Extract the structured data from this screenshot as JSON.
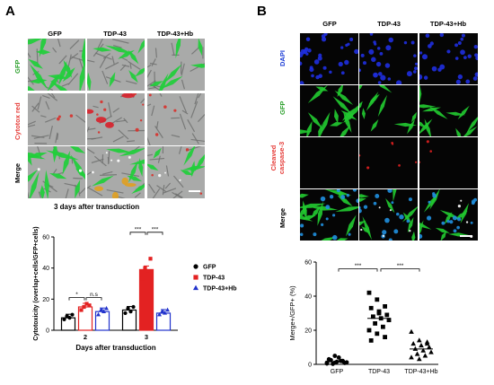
{
  "panel_a": {
    "letter": "A",
    "columns": [
      "GFP",
      "TDP-43",
      "TDP-43+Hb"
    ],
    "rows": [
      {
        "label": "GFP",
        "color": "#2ca02c"
      },
      {
        "label": "Cytotox red",
        "color": "#e53935"
      },
      {
        "label": "Merge",
        "color": "#000000"
      }
    ],
    "caption": "3 days after transduction"
  },
  "panel_b": {
    "letter": "B",
    "columns": [
      "GFP",
      "TDP-43",
      "TDP-43+Hb"
    ],
    "rows": [
      {
        "label": "DAPI",
        "color": "#1f3fd6"
      },
      {
        "label": "GFP",
        "color": "#2ca02c"
      },
      {
        "label": "Cleaved caspase-3",
        "color": "#e53935"
      },
      {
        "label": "Merge",
        "color": "#000000"
      }
    ]
  },
  "chart_data": [
    {
      "type": "bar",
      "ylabel": "Cytotoxicity (overlap+cells/GFP+cells)",
      "xlabel": "Days after transduction",
      "ylim": [
        0,
        60
      ],
      "yticks": [
        0,
        20,
        40,
        60
      ],
      "categories": [
        "2",
        "3"
      ],
      "series": [
        {
          "name": "GFP",
          "color": "#000000",
          "marker": "circle",
          "values": [
            8,
            13
          ],
          "points": [
            [
              7,
              9,
              8,
              10
            ],
            [
              11,
              14,
              12,
              15
            ]
          ]
        },
        {
          "name": "TDP-43",
          "color": "#e32222",
          "marker": "square",
          "values": [
            15,
            39
          ],
          "points": [
            [
              13,
              15,
              17,
              16
            ],
            [
              33,
              40,
              38,
              46
            ]
          ]
        },
        {
          "name": "TDP-43+Hb",
          "color": "#2233cc",
          "marker": "triangle",
          "values": [
            12,
            11
          ],
          "points": [
            [
              10,
              13,
              12,
              14
            ],
            [
              10,
              12,
              11,
              13
            ]
          ]
        }
      ],
      "significance": [
        {
          "group": "2",
          "from": "GFP",
          "to": "TDP-43",
          "label": "*"
        },
        {
          "group": "2",
          "from": "TDP-43",
          "to": "TDP-43+Hb",
          "label": "n.s"
        },
        {
          "group": "3",
          "from": "GFP",
          "to": "TDP-43",
          "label": "***"
        },
        {
          "group": "3",
          "from": "TDP-43",
          "to": "TDP-43+Hb",
          "label": "***"
        }
      ],
      "legend": [
        "GFP",
        "TDP-43",
        "TDP-43+Hb"
      ],
      "legend_placement": "right"
    },
    {
      "type": "scatter",
      "ylabel": "Merge+/GFP+ (%)",
      "ylim": [
        0,
        60
      ],
      "yticks": [
        0,
        20,
        40,
        60
      ],
      "categories": [
        "GFP",
        "TDP-43",
        "TDP-43+Hb"
      ],
      "series": [
        {
          "name": "GFP",
          "color": "#000000",
          "marker": "circle",
          "mean": 1.5,
          "points": [
            0.5,
            1,
            2,
            3,
            1.5,
            0.8,
            2.5,
            4,
            1.2,
            0.3,
            2,
            1,
            5,
            1.8
          ]
        },
        {
          "name": "TDP-43",
          "color": "#000000",
          "marker": "square",
          "mean": 27,
          "points": [
            42,
            38,
            34,
            33,
            30,
            29,
            28,
            27,
            26,
            24,
            22,
            20,
            18,
            16,
            14,
            31
          ]
        },
        {
          "name": "TDP-43+Hb",
          "color": "#000000",
          "marker": "triangle",
          "mean": 9,
          "points": [
            19,
            14,
            13,
            12,
            11,
            10,
            9,
            8,
            7,
            6,
            5,
            4,
            3,
            12
          ]
        }
      ],
      "significance": [
        {
          "from": "GFP",
          "to": "TDP-43",
          "label": "***"
        },
        {
          "from": "TDP-43",
          "to": "TDP-43+Hb",
          "label": "***"
        }
      ]
    }
  ]
}
